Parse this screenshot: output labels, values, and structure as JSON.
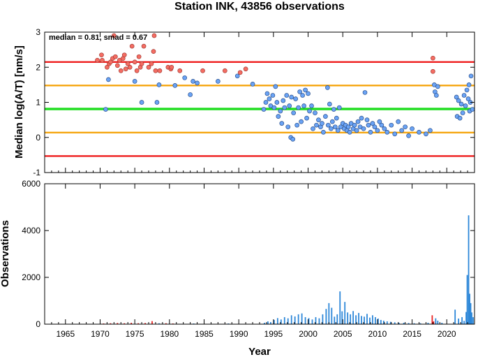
{
  "chart_data": [
    {
      "type": "scatter",
      "title": "Station INK, 43856 observations",
      "xlabel": "",
      "ylabel": "Median log(A/T) [nm/s]",
      "annotation": "median = 0.81, smad = 0.67",
      "xlim": [
        1962,
        2024
      ],
      "ylim": [
        -1,
        3
      ],
      "yticks": [
        "-1",
        "0",
        "1",
        "2",
        "3"
      ],
      "grid": false,
      "reference_lines": [
        {
          "y": 2.15,
          "color": "#ee1111"
        },
        {
          "y": 1.48,
          "color": "#f5a000"
        },
        {
          "y": 0.81,
          "color": "#22dd22"
        },
        {
          "y": 0.14,
          "color": "#f5a000"
        },
        {
          "y": -0.53,
          "color": "#ee1111"
        }
      ],
      "series": [
        {
          "color": "#f46d63",
          "points": [
            [
              1969.6,
              2.2
            ],
            [
              1970.2,
              2.35
            ],
            [
              1970.3,
              2.2
            ],
            [
              1971.0,
              2.0
            ],
            [
              1971.3,
              2.1
            ],
            [
              1971.5,
              2.15
            ],
            [
              1971.8,
              2.25
            ],
            [
              1972.0,
              2.9
            ],
            [
              1972.2,
              2.3
            ],
            [
              1972.5,
              2.05
            ],
            [
              1972.8,
              2.2
            ],
            [
              1973.0,
              1.9
            ],
            [
              1973.3,
              2.25
            ],
            [
              1973.5,
              2.35
            ],
            [
              1973.7,
              1.95
            ],
            [
              1974.0,
              2.1
            ],
            [
              1974.3,
              2.0
            ],
            [
              1974.6,
              2.6
            ],
            [
              1975.0,
              2.15
            ],
            [
              1975.3,
              1.9
            ],
            [
              1975.6,
              2.3
            ],
            [
              1975.8,
              2.0
            ],
            [
              1976.0,
              2.1
            ],
            [
              1976.3,
              2.6
            ],
            [
              1977.0,
              2.0
            ],
            [
              1977.4,
              2.1
            ],
            [
              1977.7,
              2.45
            ],
            [
              1977.8,
              2.9
            ],
            [
              1978.0,
              1.9
            ],
            [
              1978.6,
              1.9
            ],
            [
              1979.8,
              2.0
            ],
            [
              1980.2,
              1.95
            ],
            [
              1980.3,
              2.0
            ],
            [
              1981.5,
              1.9
            ],
            [
              1984.8,
              1.9
            ],
            [
              1988.0,
              1.9
            ],
            [
              1990.2,
              1.85
            ],
            [
              1991.0,
              1.95
            ],
            [
              2018.0,
              2.26
            ],
            [
              2018.0,
              1.88
            ]
          ]
        },
        {
          "color": "#6aa3f5",
          "points": [
            [
              1970.8,
              0.8
            ],
            [
              1971.2,
              1.65
            ],
            [
              1975.0,
              1.6
            ],
            [
              1976.0,
              1.0
            ],
            [
              1978.2,
              1.0
            ],
            [
              1978.5,
              1.5
            ],
            [
              1980.8,
              1.48
            ],
            [
              1982.2,
              1.7
            ],
            [
              1983.0,
              1.22
            ],
            [
              1983.4,
              1.6
            ],
            [
              1984.0,
              1.55
            ],
            [
              1987.0,
              1.6
            ],
            [
              1989.8,
              1.75
            ],
            [
              1992.0,
              1.52
            ],
            [
              1993.6,
              0.8
            ],
            [
              1993.9,
              1.0
            ],
            [
              1994.1,
              1.25
            ],
            [
              1994.4,
              1.1
            ],
            [
              1994.6,
              0.9
            ],
            [
              1994.9,
              1.2
            ],
            [
              1995.1,
              0.85
            ],
            [
              1995.3,
              1.45
            ],
            [
              1995.5,
              1.0
            ],
            [
              1995.7,
              0.6
            ],
            [
              1996.0,
              0.75
            ],
            [
              1996.2,
              0.4
            ],
            [
              1996.4,
              1.05
            ],
            [
              1996.6,
              0.85
            ],
            [
              1996.9,
              1.2
            ],
            [
              1997.1,
              0.3
            ],
            [
              1997.3,
              0.9
            ],
            [
              1997.5,
              0.0
            ],
            [
              1997.6,
              1.15
            ],
            [
              1997.8,
              -0.05
            ],
            [
              1997.9,
              0.7
            ],
            [
              1998.2,
              1.1
            ],
            [
              1998.4,
              0.35
            ],
            [
              1998.6,
              0.85
            ],
            [
              1998.8,
              1.3
            ],
            [
              1999.0,
              0.45
            ],
            [
              1999.2,
              1.2
            ],
            [
              1999.4,
              0.9
            ],
            [
              1999.6,
              1.35
            ],
            [
              1999.8,
              0.55
            ],
            [
              2000.0,
              1.25
            ],
            [
              2000.2,
              0.75
            ],
            [
              2000.5,
              0.9
            ],
            [
              2000.7,
              0.25
            ],
            [
              2001.0,
              0.7
            ],
            [
              2001.2,
              0.35
            ],
            [
              2001.5,
              0.5
            ],
            [
              2001.8,
              0.3
            ],
            [
              2002.0,
              0.4
            ],
            [
              2002.2,
              0.15
            ],
            [
              2002.5,
              0.6
            ],
            [
              2002.8,
              1.42
            ],
            [
              2002.9,
              0.35
            ],
            [
              2003.1,
              0.95
            ],
            [
              2003.3,
              0.25
            ],
            [
              2003.5,
              0.45
            ],
            [
              2003.7,
              0.8
            ],
            [
              2003.9,
              0.3
            ],
            [
              2004.1,
              0.55
            ],
            [
              2004.3,
              0.2
            ],
            [
              2004.5,
              0.85
            ],
            [
              2004.7,
              0.3
            ],
            [
              2005.0,
              0.4
            ],
            [
              2005.2,
              0.25
            ],
            [
              2005.4,
              0.35
            ],
            [
              2005.6,
              0.2
            ],
            [
              2005.8,
              0.3
            ],
            [
              2006.0,
              0.15
            ],
            [
              2006.2,
              0.4
            ],
            [
              2006.5,
              0.25
            ],
            [
              2006.7,
              0.35
            ],
            [
              2007.0,
              0.2
            ],
            [
              2007.2,
              0.45
            ],
            [
              2007.5,
              0.3
            ],
            [
              2007.7,
              0.55
            ],
            [
              2008.0,
              0.25
            ],
            [
              2008.2,
              1.28
            ],
            [
              2008.5,
              0.5
            ],
            [
              2008.7,
              0.35
            ],
            [
              2009.0,
              0.15
            ],
            [
              2009.3,
              0.4
            ],
            [
              2009.6,
              0.3
            ],
            [
              2010.0,
              0.2
            ],
            [
              2010.3,
              0.45
            ],
            [
              2010.6,
              0.35
            ],
            [
              2011.0,
              0.25
            ],
            [
              2011.4,
              0.15
            ],
            [
              2012.0,
              0.35
            ],
            [
              2012.5,
              0.1
            ],
            [
              2013.0,
              0.45
            ],
            [
              2013.5,
              0.2
            ],
            [
              2014.0,
              0.3
            ],
            [
              2014.5,
              0.05
            ],
            [
              2015.0,
              0.25
            ],
            [
              2016.0,
              0.15
            ],
            [
              2017.0,
              0.1
            ],
            [
              2017.6,
              0.2
            ],
            [
              2018.2,
              1.5
            ],
            [
              2018.3,
              1.3
            ],
            [
              2018.5,
              1.2
            ],
            [
              2018.7,
              1.45
            ],
            [
              2021.4,
              1.15
            ],
            [
              2021.5,
              0.6
            ],
            [
              2021.7,
              1.05
            ],
            [
              2021.9,
              0.55
            ],
            [
              2022.1,
              0.95
            ],
            [
              2022.3,
              0.7
            ],
            [
              2022.5,
              1.2
            ],
            [
              2022.7,
              0.9
            ],
            [
              2022.9,
              1.35
            ],
            [
              2023.1,
              1.1
            ],
            [
              2023.2,
              1.5
            ],
            [
              2023.3,
              0.75
            ],
            [
              2023.4,
              1.0
            ],
            [
              2023.5,
              1.75
            ],
            [
              2023.7,
              0.8
            ]
          ]
        }
      ]
    },
    {
      "type": "bar",
      "title": "",
      "xlabel": "Year",
      "ylabel": "Observations",
      "xlim": [
        1962,
        2024
      ],
      "ylim": [
        0,
        6000
      ],
      "yticks": [
        "0",
        "2000",
        "4000",
        "6000"
      ],
      "xticks": [
        "1965",
        "1970",
        "1975",
        "1980",
        "1985",
        "1990",
        "1995",
        "2000",
        "2005",
        "2010",
        "2015",
        "2020"
      ],
      "grid": false,
      "series": [
        {
          "color": "#e82020",
          "bars": [
            [
              1970.5,
              30
            ],
            [
              1971.5,
              40
            ],
            [
              1972.5,
              50
            ],
            [
              1973.5,
              40
            ],
            [
              1974.5,
              60
            ],
            [
              1975.5,
              40
            ],
            [
              1976.5,
              50
            ],
            [
              1977.5,
              130
            ],
            [
              1979.5,
              40
            ],
            [
              1980.5,
              30
            ],
            [
              2017.9,
              380
            ],
            [
              2018.1,
              120
            ]
          ]
        },
        {
          "color": "#2b86d8",
          "bars": [
            [
              1978.5,
              40
            ],
            [
              1983.5,
              30
            ],
            [
              1988.5,
              30
            ],
            [
              1993.7,
              60
            ],
            [
              1994.2,
              120
            ],
            [
              1994.6,
              90
            ],
            [
              1995.1,
              180
            ],
            [
              1995.6,
              260
            ],
            [
              1996.1,
              200
            ],
            [
              1996.6,
              300
            ],
            [
              1997.1,
              250
            ],
            [
              1997.6,
              380
            ],
            [
              1998.1,
              330
            ],
            [
              1998.6,
              420
            ],
            [
              1999.1,
              460
            ],
            [
              1999.6,
              300
            ],
            [
              2000.1,
              260
            ],
            [
              2000.6,
              200
            ],
            [
              2001.1,
              300
            ],
            [
              2001.6,
              250
            ],
            [
              2002.1,
              420
            ],
            [
              2002.6,
              650
            ],
            [
              2003.0,
              900
            ],
            [
              2003.4,
              700
            ],
            [
              2003.8,
              320
            ],
            [
              2004.2,
              420
            ],
            [
              2004.6,
              1400
            ],
            [
              2004.9,
              550
            ],
            [
              2005.3,
              950
            ],
            [
              2005.7,
              500
            ],
            [
              2006.1,
              420
            ],
            [
              2006.5,
              560
            ],
            [
              2006.9,
              380
            ],
            [
              2007.3,
              480
            ],
            [
              2007.7,
              350
            ],
            [
              2008.1,
              320
            ],
            [
              2008.5,
              440
            ],
            [
              2008.9,
              280
            ],
            [
              2009.3,
              380
            ],
            [
              2009.7,
              300
            ],
            [
              2010.1,
              240
            ],
            [
              2010.5,
              180
            ],
            [
              2010.9,
              150
            ],
            [
              2011.4,
              120
            ],
            [
              2011.9,
              100
            ],
            [
              2012.5,
              80
            ],
            [
              2013.1,
              60
            ],
            [
              2013.8,
              60
            ],
            [
              2014.5,
              50
            ],
            [
              2015.3,
              40
            ],
            [
              2016.2,
              40
            ],
            [
              2017.3,
              60
            ],
            [
              2018.4,
              250
            ],
            [
              2018.7,
              150
            ],
            [
              2019.3,
              60
            ],
            [
              2021.2,
              620
            ],
            [
              2021.7,
              240
            ],
            [
              2022.2,
              300
            ],
            [
              2022.5,
              140
            ],
            [
              2022.8,
              520
            ],
            [
              2022.95,
              2100
            ],
            [
              2023.15,
              4650
            ],
            [
              2023.3,
              1300
            ],
            [
              2023.45,
              900
            ],
            [
              2023.6,
              500
            ],
            [
              2023.8,
              300
            ]
          ]
        }
      ]
    }
  ]
}
